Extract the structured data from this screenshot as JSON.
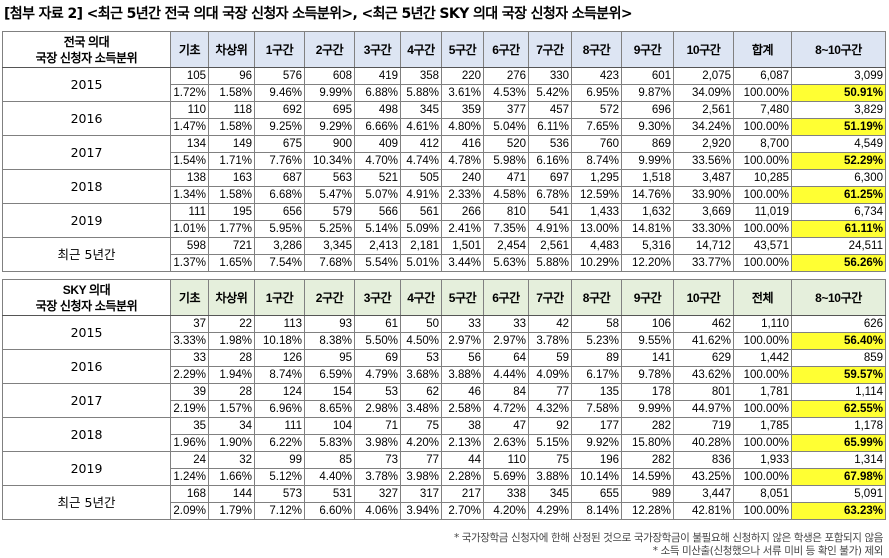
{
  "title": "[첨부 자료 2] <최근 5년간 전국 의대 국장 신청자 소득분위>, <최근 5년간 SKY 의대 국장 신청자 소득분위>",
  "columns_common": [
    "기초",
    "차상위",
    "1구간",
    "2구간",
    "3구간",
    "4구간",
    "5구간",
    "6구간",
    "7구간",
    "8구간",
    "9구간",
    "10구간"
  ],
  "tables": [
    {
      "header_label_lines": [
        "전국 의대",
        "국장 신청자 소득분위"
      ],
      "total_label": "합계",
      "last_label": "8~10구간",
      "rows": [
        {
          "label": "2015",
          "counts": [
            "105",
            "96",
            "576",
            "608",
            "419",
            "358",
            "220",
            "276",
            "330",
            "423",
            "601",
            "2,075",
            "6,087",
            "3,099"
          ],
          "pcts": [
            "1.72%",
            "1.58%",
            "9.46%",
            "9.99%",
            "6.88%",
            "5.88%",
            "3.61%",
            "4.53%",
            "5.42%",
            "6.95%",
            "9.87%",
            "34.09%",
            "100.00%",
            "50.91%"
          ]
        },
        {
          "label": "2016",
          "counts": [
            "110",
            "118",
            "692",
            "695",
            "498",
            "345",
            "359",
            "377",
            "457",
            "572",
            "696",
            "2,561",
            "7,480",
            "3,829"
          ],
          "pcts": [
            "1.47%",
            "1.58%",
            "9.25%",
            "9.29%",
            "6.66%",
            "4.61%",
            "4.80%",
            "5.04%",
            "6.11%",
            "7.65%",
            "9.30%",
            "34.24%",
            "100.00%",
            "51.19%"
          ]
        },
        {
          "label": "2017",
          "counts": [
            "134",
            "149",
            "675",
            "900",
            "409",
            "412",
            "416",
            "520",
            "536",
            "760",
            "869",
            "2,920",
            "8,700",
            "4,549"
          ],
          "pcts": [
            "1.54%",
            "1.71%",
            "7.76%",
            "10.34%",
            "4.70%",
            "4.74%",
            "4.78%",
            "5.98%",
            "6.16%",
            "8.74%",
            "9.99%",
            "33.56%",
            "100.00%",
            "52.29%"
          ]
        },
        {
          "label": "2018",
          "counts": [
            "138",
            "163",
            "687",
            "563",
            "521",
            "505",
            "240",
            "471",
            "697",
            "1,295",
            "1,518",
            "3,487",
            "10,285",
            "6,300"
          ],
          "pcts": [
            "1.34%",
            "1.58%",
            "6.68%",
            "5.47%",
            "5.07%",
            "4.91%",
            "2.33%",
            "4.58%",
            "6.78%",
            "12.59%",
            "14.76%",
            "33.90%",
            "100.00%",
            "61.25%"
          ]
        },
        {
          "label": "2019",
          "counts": [
            "111",
            "195",
            "656",
            "579",
            "566",
            "561",
            "266",
            "810",
            "541",
            "1,433",
            "1,632",
            "3,669",
            "11,019",
            "6,734"
          ],
          "pcts": [
            "1.01%",
            "1.77%",
            "5.95%",
            "5.25%",
            "5.14%",
            "5.09%",
            "2.41%",
            "7.35%",
            "4.91%",
            "13.00%",
            "14.81%",
            "33.30%",
            "100.00%",
            "61.11%"
          ]
        },
        {
          "label": "최근 5년간",
          "counts": [
            "598",
            "721",
            "3,286",
            "3,345",
            "2,413",
            "2,181",
            "1,501",
            "2,454",
            "2,561",
            "4,483",
            "5,316",
            "14,712",
            "43,571",
            "24,511"
          ],
          "pcts": [
            "1.37%",
            "1.65%",
            "7.54%",
            "7.68%",
            "5.54%",
            "5.01%",
            "3.44%",
            "5.63%",
            "5.88%",
            "10.29%",
            "12.20%",
            "33.77%",
            "100.00%",
            "56.26%"
          ]
        }
      ]
    },
    {
      "header_label_lines": [
        "SKY 의대",
        "국장 신청자 소득분위"
      ],
      "total_label": "전체",
      "last_label": "8~10구간",
      "rows": [
        {
          "label": "2015",
          "counts": [
            "37",
            "22",
            "113",
            "93",
            "61",
            "50",
            "33",
            "33",
            "42",
            "58",
            "106",
            "462",
            "1,110",
            "626"
          ],
          "pcts": [
            "3.33%",
            "1.98%",
            "10.18%",
            "8.38%",
            "5.50%",
            "4.50%",
            "2.97%",
            "2.97%",
            "3.78%",
            "5.23%",
            "9.55%",
            "41.62%",
            "100.00%",
            "56.40%"
          ]
        },
        {
          "label": "2016",
          "counts": [
            "33",
            "28",
            "126",
            "95",
            "69",
            "53",
            "56",
            "64",
            "59",
            "89",
            "141",
            "629",
            "1,442",
            "859"
          ],
          "pcts": [
            "2.29%",
            "1.94%",
            "8.74%",
            "6.59%",
            "4.79%",
            "3.68%",
            "3.88%",
            "4.44%",
            "4.09%",
            "6.17%",
            "9.78%",
            "43.62%",
            "100.00%",
            "59.57%"
          ]
        },
        {
          "label": "2017",
          "counts": [
            "39",
            "28",
            "124",
            "154",
            "53",
            "62",
            "46",
            "84",
            "77",
            "135",
            "178",
            "801",
            "1,781",
            "1,114"
          ],
          "pcts": [
            "2.19%",
            "1.57%",
            "6.96%",
            "8.65%",
            "2.98%",
            "3.48%",
            "2.58%",
            "4.72%",
            "4.32%",
            "7.58%",
            "9.99%",
            "44.97%",
            "100.00%",
            "62.55%"
          ]
        },
        {
          "label": "2018",
          "counts": [
            "35",
            "34",
            "111",
            "104",
            "71",
            "75",
            "38",
            "47",
            "92",
            "177",
            "282",
            "719",
            "1,785",
            "1,178"
          ],
          "pcts": [
            "1.96%",
            "1.90%",
            "6.22%",
            "5.83%",
            "3.98%",
            "4.20%",
            "2.13%",
            "2.63%",
            "5.15%",
            "9.92%",
            "15.80%",
            "40.28%",
            "100.00%",
            "65.99%"
          ]
        },
        {
          "label": "2019",
          "counts": [
            "24",
            "32",
            "99",
            "85",
            "73",
            "77",
            "44",
            "110",
            "75",
            "196",
            "282",
            "836",
            "1,933",
            "1,314"
          ],
          "pcts": [
            "1.24%",
            "1.66%",
            "5.12%",
            "4.40%",
            "3.78%",
            "3.98%",
            "2.28%",
            "5.69%",
            "3.88%",
            "10.14%",
            "14.59%",
            "43.25%",
            "100.00%",
            "67.98%"
          ]
        },
        {
          "label": "최근 5년간",
          "counts": [
            "168",
            "144",
            "573",
            "531",
            "327",
            "317",
            "217",
            "338",
            "345",
            "655",
            "989",
            "3,447",
            "8,051",
            "5,091"
          ],
          "pcts": [
            "2.09%",
            "1.79%",
            "7.12%",
            "6.60%",
            "4.06%",
            "3.94%",
            "2.70%",
            "4.20%",
            "4.29%",
            "8.14%",
            "12.28%",
            "42.81%",
            "100.00%",
            "63.23%"
          ]
        }
      ]
    }
  ],
  "footnotes": [
    "* 국가장학금 신청자에 한해 산정된 것으로 국가장학금이 불필요해 신청하지 않은 학생은 포함되지 않음",
    "* 소득 미산출(신청했으나 서류 미비 등 확인 불가) 제외"
  ],
  "colors": {
    "header_blue": "#dde5f3",
    "header_green": "#e5efdc",
    "highlight": "#ffff33",
    "border": "#808080"
  }
}
